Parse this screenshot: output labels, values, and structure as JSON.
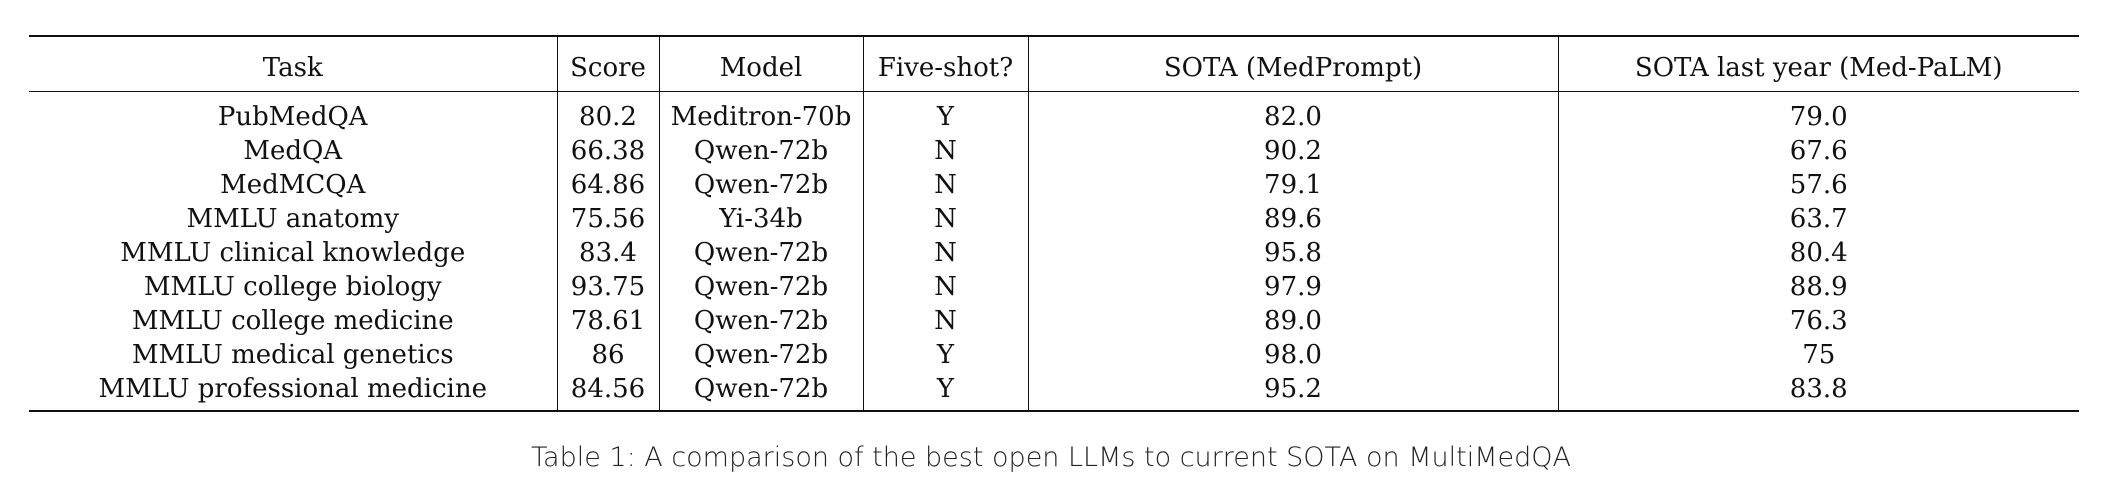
{
  "table": {
    "headers": [
      "Task",
      "Score",
      "Model",
      "Five-shot?",
      "SOTA (MedPrompt)",
      "SOTA last year (Med-PaLM)"
    ],
    "rows": [
      [
        "PubMedQA",
        "80.2",
        "Meditron-70b",
        "Y",
        "82.0",
        "79.0"
      ],
      [
        "MedQA",
        "66.38",
        "Qwen-72b",
        "N",
        "90.2",
        "67.6"
      ],
      [
        "MedMCQA",
        "64.86",
        "Qwen-72b",
        "N",
        "79.1",
        "57.6"
      ],
      [
        "MMLU anatomy",
        "75.56",
        "Yi-34b",
        "N",
        "89.6",
        "63.7"
      ],
      [
        "MMLU clinical knowledge",
        "83.4",
        "Qwen-72b",
        "N",
        "95.8",
        "80.4"
      ],
      [
        "MMLU college biology",
        "93.75",
        "Qwen-72b",
        "N",
        "97.9",
        "88.9"
      ],
      [
        "MMLU college medicine",
        "78.61",
        "Qwen-72b",
        "N",
        "89.0",
        "76.3"
      ],
      [
        "MMLU medical genetics",
        "86",
        "Qwen-72b",
        "Y",
        "98.0",
        "75"
      ],
      [
        "MMLU professional medicine",
        "84.56",
        "Qwen-72b",
        "Y",
        "95.2",
        "83.8"
      ]
    ]
  },
  "caption": "Table 1: A comparison of the best open LLMs to current SOTA on MultiMedQA"
}
